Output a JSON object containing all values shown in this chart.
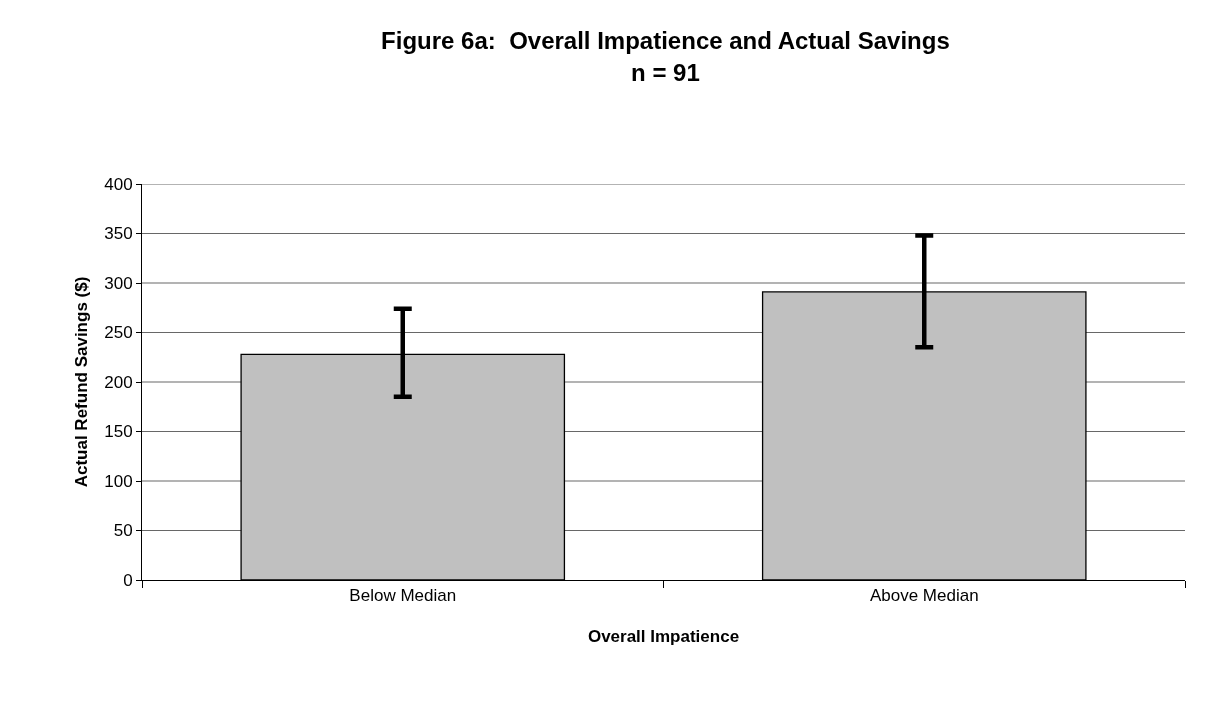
{
  "chart_data": {
    "type": "bar",
    "title": "Figure 6a:  Overall Impatience and Actual Savings",
    "subtitle": "n = 91",
    "xlabel": "Overall Impatience",
    "ylabel": "Actual Refund Savings ($)",
    "categories": [
      "Below Median",
      "Above Median"
    ],
    "values": [
      228,
      291
    ],
    "errors": [
      [
        185,
        274
      ],
      [
        235,
        348
      ]
    ],
    "color": "#c0c0c0",
    "ylim": [
      0,
      400
    ],
    "yticks": [
      0,
      50,
      100,
      150,
      200,
      250,
      300,
      350,
      400
    ],
    "grid": "y"
  }
}
